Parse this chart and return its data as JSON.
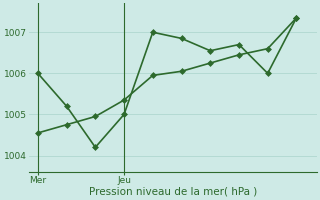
{
  "line1_x": [
    0,
    1,
    2,
    3,
    4,
    5,
    6,
    7,
    8,
    9
  ],
  "line1_y": [
    1006.0,
    1005.2,
    1004.2,
    1005.0,
    1007.0,
    1006.85,
    1006.55,
    1006.7,
    1006.0,
    1007.35
  ],
  "line2_x": [
    0,
    1,
    2,
    3,
    4,
    5,
    6,
    7,
    8,
    9
  ],
  "line2_y": [
    1004.55,
    1004.75,
    1004.95,
    1005.35,
    1005.95,
    1006.05,
    1006.25,
    1006.45,
    1006.6,
    1007.35
  ],
  "line_color": "#2d6a2d",
  "bg_color": "#ceeae6",
  "grid_color": "#b0d8d0",
  "xlabel": "Pression niveau de la mer( hPa )",
  "yticks": [
    1004,
    1005,
    1006,
    1007
  ],
  "xtick_labels": [
    "Mer",
    "Jeu"
  ],
  "vline_x": [
    0,
    3
  ],
  "ylim": [
    1003.6,
    1007.7
  ],
  "xlim": [
    -0.3,
    9.7
  ],
  "marker": "D",
  "markersize": 3.0,
  "linewidth": 1.2
}
